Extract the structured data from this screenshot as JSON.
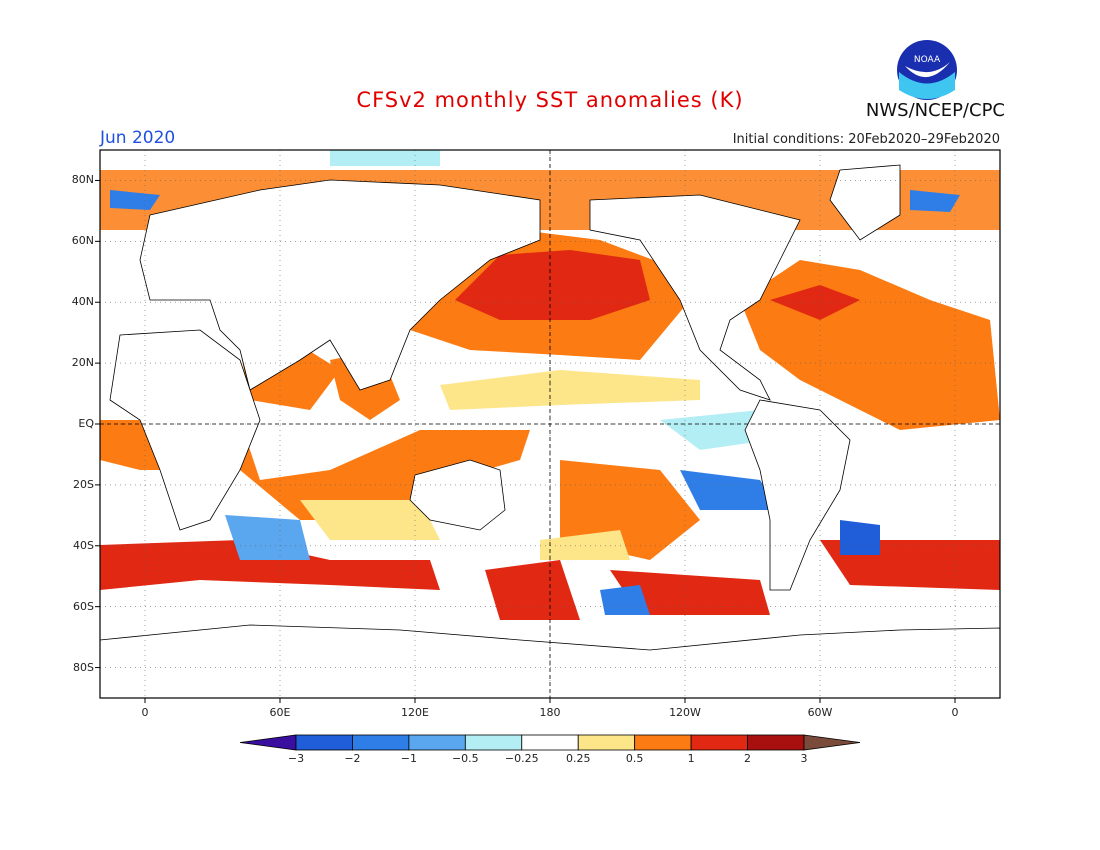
{
  "header": {
    "title": "CFSv2 monthly SST anomalies (K)",
    "month": "Jun 2020",
    "initial_conditions": "Initial conditions: 20Feb2020–29Feb2020",
    "agency": "NWS/NCEP/CPC",
    "logo_text": "NOAA"
  },
  "map": {
    "projection": "equirectangular",
    "lon_range": [
      -20,
      380
    ],
    "lat_range": [
      -90,
      90
    ],
    "lat_ticks": [
      {
        "value": 80,
        "label": "80N"
      },
      {
        "value": 60,
        "label": "60N"
      },
      {
        "value": 40,
        "label": "40N"
      },
      {
        "value": 20,
        "label": "20N"
      },
      {
        "value": 0,
        "label": "EQ"
      },
      {
        "value": -20,
        "label": "20S"
      },
      {
        "value": -40,
        "label": "40S"
      },
      {
        "value": -60,
        "label": "60S"
      },
      {
        "value": -80,
        "label": "80S"
      }
    ],
    "lon_ticks": [
      {
        "value": 0,
        "label": "0"
      },
      {
        "value": 60,
        "label": "60E"
      },
      {
        "value": 120,
        "label": "120E"
      },
      {
        "value": 180,
        "label": "180"
      },
      {
        "value": 240,
        "label": "120W"
      },
      {
        "value": 300,
        "label": "60W"
      },
      {
        "value": 360,
        "label": "0"
      }
    ],
    "reference_lines": {
      "equator": 0,
      "dateline": 180
    },
    "grid": "dotted"
  },
  "colorbar": {
    "labels": [
      "−3",
      "−2",
      "−1",
      "−0.5",
      "−0.25",
      "0.25",
      "0.5",
      "1",
      "2",
      "3"
    ],
    "colors": [
      "#3a0fa0",
      "#1f5ed8",
      "#2f7ee8",
      "#5aa6ef",
      "#b4eef5",
      "#ffffff",
      "#fde58a",
      "#fc7b12",
      "#e02812",
      "#a80f0f",
      "#7a4a3a"
    ]
  }
}
